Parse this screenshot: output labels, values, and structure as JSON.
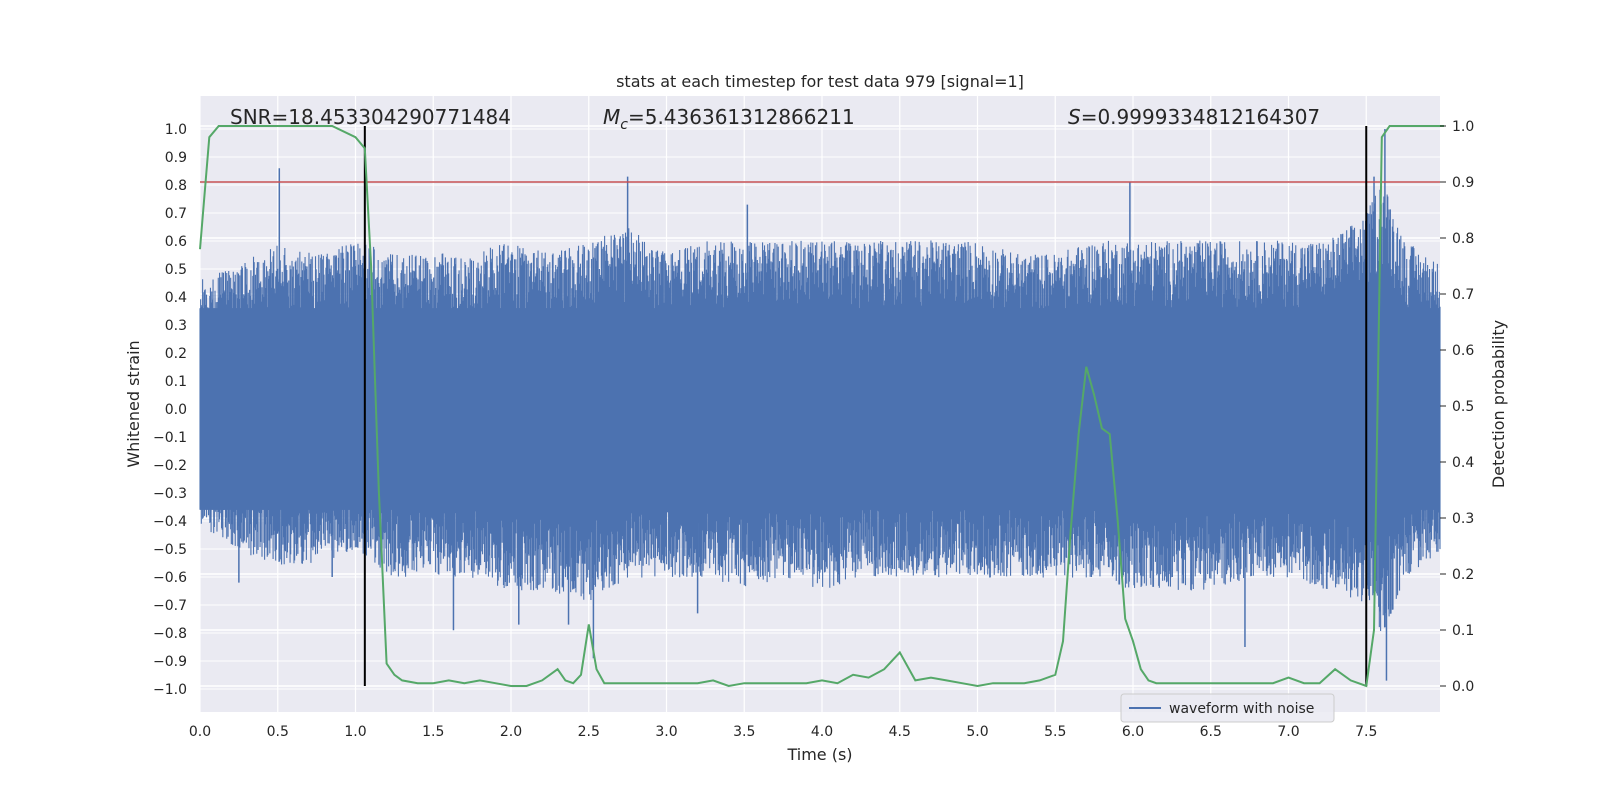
{
  "chart_data": {
    "type": "line",
    "title": "stats at each timestep for test data 979 [signal=1]",
    "xlabel": "Time (s)",
    "ylabel": "Whitened strain",
    "y2label": "Detection probability",
    "xlim": [
      0,
      8
    ],
    "ylim": [
      -1.1,
      1.1
    ],
    "y2lim": [
      -0.05,
      1.05
    ],
    "x_ticks": [
      0.0,
      0.5,
      1.0,
      1.5,
      2.0,
      2.5,
      3.0,
      3.5,
      4.0,
      4.5,
      5.0,
      5.5,
      6.0,
      6.5,
      7.0,
      7.5
    ],
    "x_tick_labels": [
      "0.0",
      "0.5",
      "1.0",
      "1.5",
      "2.0",
      "2.5",
      "3.0",
      "3.5",
      "4.0",
      "4.5",
      "5.0",
      "5.5",
      "6.0",
      "6.5",
      "7.0",
      "7.5"
    ],
    "y_ticks": [
      1.0,
      0.9,
      0.8,
      0.7,
      0.6,
      0.5,
      0.4,
      0.3,
      0.2,
      0.1,
      0.0,
      -0.1,
      -0.2,
      -0.3,
      -0.4,
      -0.5,
      -0.6,
      -0.7,
      -0.8,
      -0.9,
      -1.0
    ],
    "y_tick_labels": [
      "1.0",
      "0.9",
      "0.8",
      "0.7",
      "0.6",
      "0.5",
      "0.4",
      "0.3",
      "0.2",
      "0.1",
      "0.0",
      "−0.1",
      "−0.2",
      "−0.3",
      "−0.4",
      "−0.5",
      "−0.6",
      "−0.7",
      "−0.8",
      "−0.9",
      "−1.0"
    ],
    "y2_ticks": [
      1.0,
      0.9,
      0.8,
      0.7,
      0.6,
      0.5,
      0.4,
      0.3,
      0.2,
      0.1,
      0.0
    ],
    "y2_tick_labels": [
      "1.0",
      "0.9",
      "0.8",
      "0.7",
      "0.6",
      "0.5",
      "0.4",
      "0.3",
      "0.2",
      "0.1",
      "0.0"
    ],
    "grid": true,
    "annotations": {
      "snr": "SNR=18.453304290771484",
      "mc_symbol": "M",
      "mc_sub": "c",
      "mc_value": "=5.436361312866211",
      "s_symbol": "S",
      "s_value": "=0.9999334812164307"
    },
    "threshold": 0.9,
    "vertical_markers": [
      1.06,
      7.5
    ],
    "legend": {
      "entries": [
        "waveform with noise"
      ],
      "placement": "lower-right"
    },
    "series": [
      {
        "name": "waveform with noise",
        "axis": "left",
        "color": "#4c72b0",
        "envelope": [
          [
            0.0,
            0.45,
            -0.4
          ],
          [
            0.25,
            0.5,
            -0.5
          ],
          [
            0.5,
            0.6,
            -0.55
          ],
          [
            0.75,
            0.55,
            -0.55
          ],
          [
            1.0,
            0.6,
            -0.5
          ],
          [
            1.25,
            0.55,
            -0.6
          ],
          [
            1.5,
            0.55,
            -0.6
          ],
          [
            1.75,
            0.55,
            -0.6
          ],
          [
            2.0,
            0.6,
            -0.65
          ],
          [
            2.25,
            0.55,
            -0.65
          ],
          [
            2.5,
            0.6,
            -0.7
          ],
          [
            2.75,
            0.65,
            -0.6
          ],
          [
            3.0,
            0.55,
            -0.6
          ],
          [
            3.25,
            0.6,
            -0.6
          ],
          [
            3.5,
            0.6,
            -0.65
          ],
          [
            3.75,
            0.6,
            -0.6
          ],
          [
            4.0,
            0.6,
            -0.65
          ],
          [
            4.25,
            0.6,
            -0.6
          ],
          [
            4.5,
            0.6,
            -0.6
          ],
          [
            4.75,
            0.6,
            -0.6
          ],
          [
            5.0,
            0.6,
            -0.6
          ],
          [
            5.25,
            0.55,
            -0.6
          ],
          [
            5.5,
            0.55,
            -0.6
          ],
          [
            5.75,
            0.6,
            -0.6
          ],
          [
            6.0,
            0.6,
            -0.65
          ],
          [
            6.25,
            0.6,
            -0.65
          ],
          [
            6.5,
            0.6,
            -0.65
          ],
          [
            6.75,
            0.6,
            -0.6
          ],
          [
            7.0,
            0.6,
            -0.6
          ],
          [
            7.25,
            0.6,
            -0.65
          ],
          [
            7.5,
            0.7,
            -0.7
          ],
          [
            7.6,
            0.85,
            -0.85
          ],
          [
            7.75,
            0.6,
            -0.6
          ],
          [
            8.0,
            0.5,
            -0.5
          ]
        ],
        "spikes": [
          [
            0.51,
            0.86
          ],
          [
            0.25,
            -0.62
          ],
          [
            0.85,
            -0.6
          ],
          [
            2.75,
            0.83
          ],
          [
            2.53,
            -0.89
          ],
          [
            2.05,
            -0.77
          ],
          [
            1.63,
            -0.79
          ],
          [
            2.37,
            -0.77
          ],
          [
            5.98,
            0.81
          ],
          [
            6.72,
            -0.85
          ],
          [
            7.62,
            1.0
          ],
          [
            7.63,
            -0.97
          ],
          [
            7.55,
            0.83
          ],
          [
            3.52,
            0.73
          ],
          [
            3.2,
            -0.73
          ]
        ]
      },
      {
        "name": "",
        "axis": "right",
        "color": "#55a868",
        "x": [
          0.0,
          0.06,
          0.12,
          0.2,
          0.4,
          0.6,
          0.85,
          1.0,
          1.06,
          1.1,
          1.15,
          1.2,
          1.25,
          1.3,
          1.4,
          1.5,
          1.6,
          1.7,
          1.8,
          1.9,
          2.0,
          2.1,
          2.2,
          2.3,
          2.35,
          2.4,
          2.45,
          2.5,
          2.55,
          2.6,
          2.7,
          2.8,
          2.9,
          3.0,
          3.1,
          3.2,
          3.3,
          3.4,
          3.5,
          3.6,
          3.7,
          3.8,
          3.9,
          4.0,
          4.1,
          4.2,
          4.3,
          4.4,
          4.5,
          4.6,
          4.7,
          4.8,
          4.9,
          5.0,
          5.1,
          5.2,
          5.3,
          5.4,
          5.5,
          5.55,
          5.6,
          5.65,
          5.7,
          5.75,
          5.8,
          5.85,
          5.9,
          5.95,
          6.0,
          6.05,
          6.1,
          6.15,
          6.2,
          6.3,
          6.4,
          6.5,
          6.6,
          6.7,
          6.8,
          6.9,
          7.0,
          7.1,
          7.2,
          7.3,
          7.4,
          7.5,
          7.55,
          7.6,
          7.65,
          7.8,
          8.0
        ],
        "y": [
          0.78,
          0.98,
          1.0,
          1.0,
          1.0,
          1.0,
          1.0,
          0.98,
          0.96,
          0.75,
          0.35,
          0.04,
          0.02,
          0.01,
          0.005,
          0.005,
          0.01,
          0.005,
          0.01,
          0.005,
          0.0,
          0.0,
          0.01,
          0.03,
          0.01,
          0.005,
          0.02,
          0.11,
          0.03,
          0.005,
          0.005,
          0.005,
          0.005,
          0.005,
          0.005,
          0.005,
          0.01,
          0.0,
          0.005,
          0.005,
          0.005,
          0.005,
          0.005,
          0.01,
          0.005,
          0.02,
          0.015,
          0.03,
          0.06,
          0.01,
          0.015,
          0.01,
          0.005,
          0.0,
          0.005,
          0.005,
          0.005,
          0.01,
          0.02,
          0.08,
          0.28,
          0.45,
          0.57,
          0.52,
          0.46,
          0.45,
          0.3,
          0.12,
          0.08,
          0.03,
          0.01,
          0.005,
          0.005,
          0.005,
          0.005,
          0.005,
          0.005,
          0.005,
          0.005,
          0.005,
          0.015,
          0.005,
          0.005,
          0.03,
          0.01,
          0.0,
          0.1,
          0.98,
          1.0,
          1.0,
          1.0
        ]
      }
    ]
  }
}
